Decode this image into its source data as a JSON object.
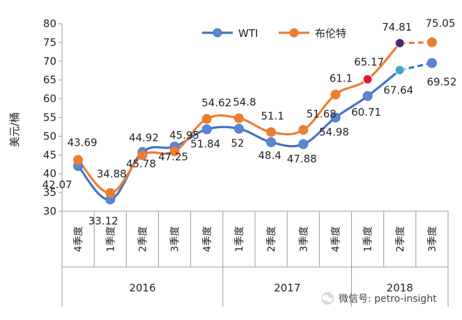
{
  "chart_data": {
    "type": "line",
    "ylabel": "美元/桶",
    "ylim": [
      30,
      80
    ],
    "yticks": [
      30,
      35,
      40,
      45,
      50,
      55,
      60,
      65,
      70,
      75,
      80
    ],
    "categories": [
      "4季度",
      "1季度",
      "2季度",
      "3季度",
      "4季度",
      "1季度",
      "2季度",
      "3季度",
      "4季度",
      "1季度",
      "2季度",
      "3季度"
    ],
    "years": [
      {
        "label": "2016",
        "start": 0,
        "end": 4
      },
      {
        "label": "2017",
        "start": 5,
        "end": 8
      },
      {
        "label": "2018",
        "start": 9,
        "end": 11
      }
    ],
    "series": [
      {
        "name": "WTI",
        "color": "#4472C4",
        "marker_color": "#5B86D0",
        "values": [
          42.07,
          33.12,
          45.78,
          47.25,
          51.84,
          52,
          48.4,
          47.88,
          54.98,
          60.71,
          67.64,
          69.52
        ],
        "labels": [
          "42.07",
          "33.12",
          "45.78",
          "47.25",
          "51.84",
          "52",
          "48.4",
          "47.88",
          "54.98",
          "60.71",
          "67.64",
          "69.52"
        ],
        "highlight_colors": {
          "10": "#3BA6C8"
        }
      },
      {
        "name": "布伦特",
        "color": "#ED7D31",
        "marker_color": "#ED7D31",
        "values": [
          43.69,
          34.88,
          44.92,
          45.95,
          54.62,
          54.8,
          51.1,
          51.68,
          61.1,
          65.17,
          74.81,
          75.05
        ],
        "labels": [
          "43.69",
          "34.88",
          "44.92",
          "45.95",
          "54.62",
          "54.8",
          "51.1",
          "51.68",
          "61.1",
          "65.17",
          "74.81",
          "75.05"
        ],
        "highlight_colors": {
          "9": "#E8173A",
          "10": "#4B2A6E"
        }
      }
    ],
    "legend_position": "top-right",
    "grid": false
  },
  "watermark": {
    "icon": "wechat-icon",
    "text": "微信号: petro-insight"
  }
}
